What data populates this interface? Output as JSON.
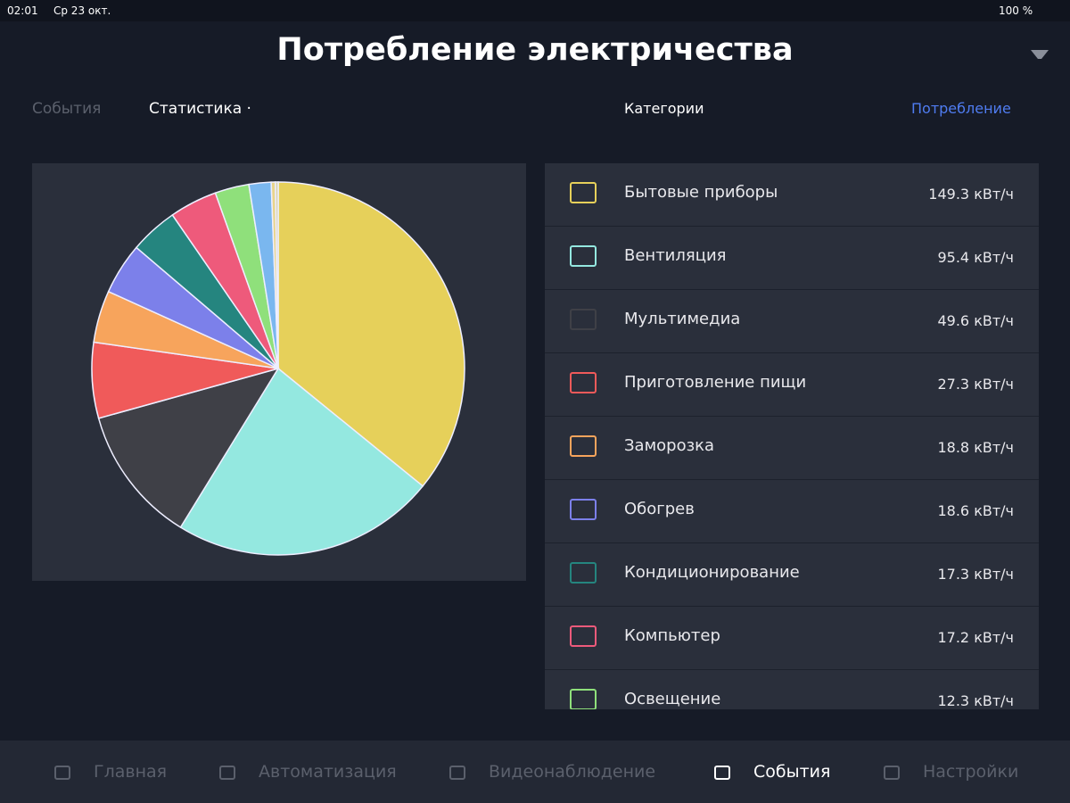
{
  "status_bar": {
    "time": "02:01",
    "date": "Ср 23 окт.",
    "battery": "100 %"
  },
  "header": {
    "title": "Потребление электричества"
  },
  "tabs": {
    "left": [
      "События",
      "Статистика ·"
    ],
    "right": [
      "Категории",
      "Потребление"
    ]
  },
  "chart_data": {
    "type": "pie",
    "categories": [
      "Бытовые приборы",
      "Вентиляция",
      "Мультимедиа",
      "Приготовление пищи",
      "Заморозка",
      "Обогрев",
      "Кондиционирование",
      "Компьютер",
      "Освещение",
      null,
      null,
      null
    ],
    "values": [
      149.3,
      95.4,
      49.6,
      27.3,
      18.8,
      18.6,
      17.3,
      17.2,
      12.3,
      8.0,
      1.5,
      1.0
    ],
    "value_labels": [
      "149.3 кВт/ч",
      "95.4 кВт/ч",
      "49.6 кВт/ч",
      "27.3 кВт/ч",
      "18.8 кВт/ч",
      "18.6 кВт/ч",
      "17.3 кВт/ч",
      "17.2 кВт/ч",
      "12.3 кВт/ч",
      null,
      null,
      null
    ],
    "colors": [
      "#e6d05a",
      "#94e8e0",
      "#3f4047",
      "#f05a5a",
      "#f7a45c",
      "#7c80ea",
      "#25857f",
      "#ee5a7b",
      "#8fe07b",
      "#7ab7ef",
      "#e8d48a",
      "#d9d2a6"
    ]
  },
  "nav": [
    "Главная",
    "Автоматизация",
    "Видеонаблюдение",
    "События",
    "Настройки"
  ]
}
